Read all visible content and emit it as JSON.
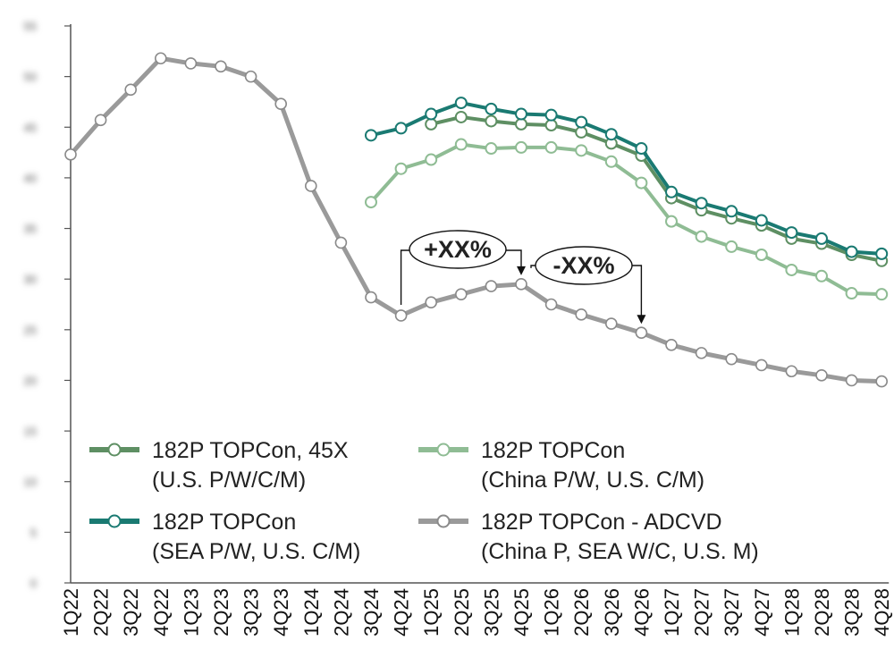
{
  "chart_data": {
    "type": "line",
    "title": "",
    "xlabel": "",
    "ylabel": "",
    "ylim": [
      0,
      55
    ],
    "yticks_obscured": true,
    "categories": [
      "1Q22",
      "2Q22",
      "3Q22",
      "4Q22",
      "1Q23",
      "2Q23",
      "3Q23",
      "4Q23",
      "1Q24",
      "2Q24",
      "3Q24",
      "4Q24",
      "1Q25",
      "2Q25",
      "3Q25",
      "4Q25",
      "1Q26",
      "2Q26",
      "3Q26",
      "4Q26",
      "1Q27",
      "2Q27",
      "3Q27",
      "4Q27",
      "1Q28",
      "2Q28",
      "3Q28",
      "4Q28"
    ],
    "series": [
      {
        "name": "182P TOPCon, 45X",
        "sub": "(U.S. P/W/C/M)",
        "color": "#5e8f63",
        "values": [
          null,
          null,
          null,
          null,
          null,
          null,
          null,
          null,
          null,
          null,
          null,
          null,
          45.3,
          46.0,
          45.6,
          45.3,
          45.2,
          44.5,
          43.4,
          42.2,
          38.0,
          36.8,
          36.0,
          35.3,
          34.0,
          33.5,
          32.4,
          31.8
        ]
      },
      {
        "name": "182P TOPCon",
        "sub": "(China P/W, U.S. C/M)",
        "color": "#8fbc94",
        "values": [
          null,
          null,
          null,
          null,
          null,
          null,
          null,
          null,
          null,
          null,
          37.6,
          40.9,
          41.8,
          43.3,
          42.9,
          43.0,
          43.0,
          42.7,
          41.6,
          39.5,
          35.7,
          34.2,
          33.2,
          32.4,
          30.9,
          30.3,
          28.6,
          28.5
        ]
      },
      {
        "name": "182P TOPCon",
        "sub": "(SEA P/W, U.S. C/M)",
        "color": "#1a7a72",
        "values": [
          null,
          null,
          null,
          null,
          null,
          null,
          null,
          null,
          null,
          null,
          44.2,
          44.9,
          46.3,
          47.4,
          46.8,
          46.3,
          46.2,
          45.5,
          44.3,
          42.9,
          38.6,
          37.5,
          36.7,
          35.8,
          34.6,
          34.0,
          32.7,
          32.5
        ]
      },
      {
        "name": "182P TOPCon - ADCVD",
        "sub": "(China P, SEA W/C, U.S. M)",
        "color": "#9a9a9a",
        "values": [
          42.3,
          45.7,
          48.7,
          51.8,
          51.3,
          51.0,
          50.0,
          47.3,
          39.2,
          33.6,
          28.2,
          26.4,
          27.7,
          28.5,
          29.3,
          29.5,
          27.5,
          26.5,
          25.6,
          24.7,
          23.5,
          22.7,
          22.1,
          21.5,
          20.9,
          20.5,
          20.0,
          19.9
        ]
      }
    ],
    "annotations": [
      {
        "text": "+XX%",
        "from": "4Q24",
        "to": "4Q25"
      },
      {
        "text": "-XX%",
        "from": "4Q25",
        "to": "4Q26"
      }
    ],
    "yaxis_labels_blurred": [
      "55",
      "50",
      "45",
      "40",
      "35",
      "30",
      "25",
      "20",
      "15",
      "10",
      "5",
      "0"
    ]
  }
}
